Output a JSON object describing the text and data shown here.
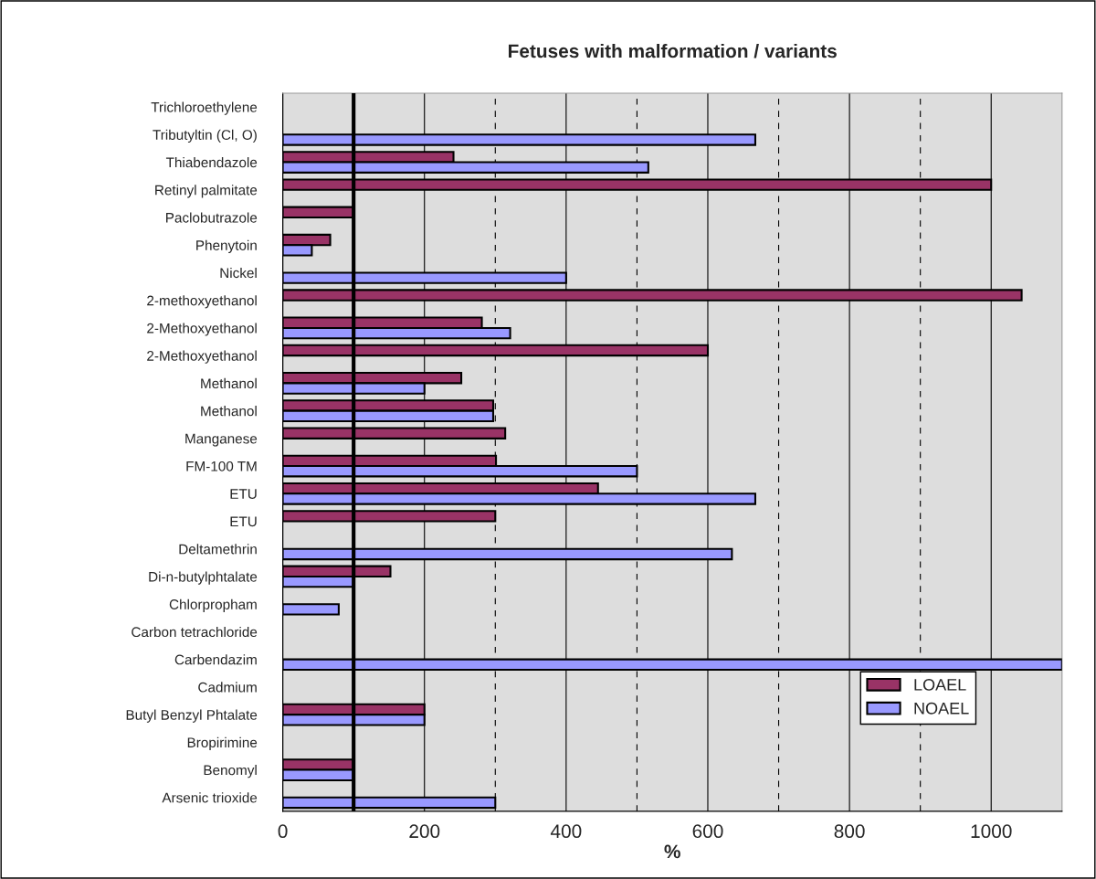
{
  "chart_data": {
    "type": "bar",
    "orientation": "horizontal",
    "title": "Fetuses with malformation / variants",
    "xlabel": "%",
    "categories": [
      "Trichloroethylene",
      "Tributyltin (Cl, O)",
      "Thiabendazole",
      "Retinyl palmitate",
      "Paclobutrazole",
      "Phenytoin",
      "Nickel",
      "2-methoxyethanol",
      "2-Methoxyethanol",
      "2-Methoxyethanol",
      "Methanol",
      "Methanol",
      "Manganese",
      "FM-100 TM",
      "ETU",
      "ETU",
      "Deltamethrin",
      "Di-n-butylphtalate",
      "Chlorpropham",
      "Carbon tetrachloride",
      "Carbendazim",
      "Cadmium",
      "Butyl Benzyl Phtalate",
      "Bropirimine",
      "Benomyl",
      "Arsenic trioxide"
    ],
    "series": [
      {
        "name": "LOAEL",
        "color": "#993366",
        "values": [
          null,
          null,
          241,
          1000,
          100,
          67,
          null,
          1043,
          281,
          600,
          252,
          297,
          314,
          301,
          445,
          300,
          null,
          152,
          null,
          null,
          null,
          null,
          200,
          null,
          100,
          null
        ]
      },
      {
        "name": "NOAEL",
        "color": "#9999ff",
        "values": [
          null,
          667,
          516,
          null,
          null,
          41,
          400,
          null,
          321,
          null,
          200,
          297,
          null,
          500,
          667,
          null,
          634,
          100,
          79,
          null,
          1100,
          null,
          200,
          null,
          100,
          300
        ]
      }
    ],
    "xlim": [
      0,
      1100
    ],
    "xticks": [
      0,
      200,
      400,
      600,
      800,
      1000
    ],
    "grid": "x",
    "legend": "bottom right",
    "ref_lines": [
      {
        "axis": "x",
        "value": 100,
        "color": "#000000",
        "line_style": "solid"
      },
      {
        "axis": "x",
        "value": 300,
        "color": "#000000",
        "line_style": "dashed"
      },
      {
        "axis": "x",
        "value": 500,
        "color": "#000000",
        "line_style": "dashed"
      },
      {
        "axis": "x",
        "value": 700,
        "color": "#000000",
        "line_style": "dashed"
      },
      {
        "axis": "x",
        "value": 900,
        "color": "#000000",
        "line_style": "dashed"
      }
    ]
  }
}
